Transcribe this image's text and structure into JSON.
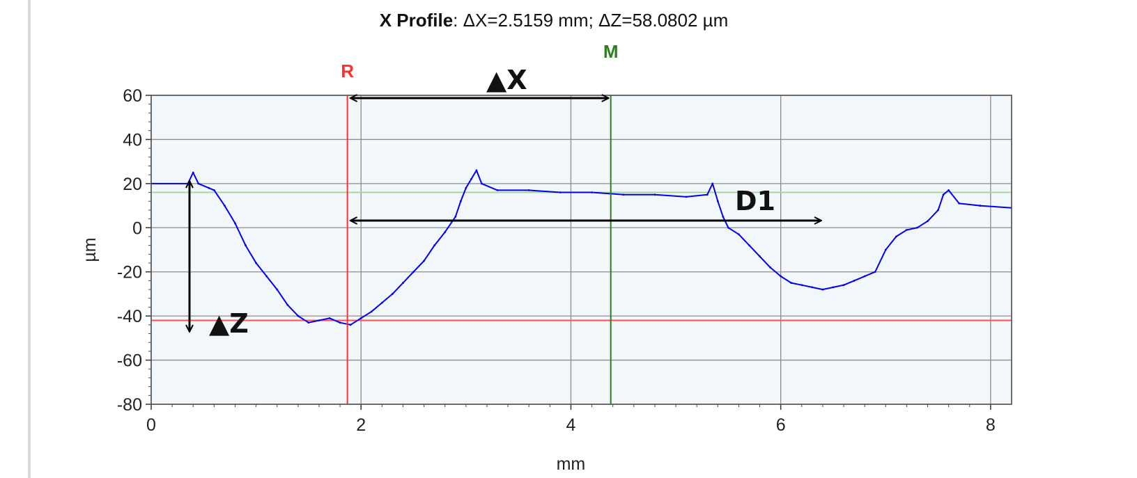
{
  "title": {
    "bold": "X Profile",
    "rest": ": ΔX=2.5159 mm; ΔZ=58.0802 µm"
  },
  "chart_data": {
    "type": "line",
    "title": "X Profile: ΔX=2.5159 mm; ΔZ=58.0802 µm",
    "xlabel": "mm",
    "ylabel": "µm",
    "xlim": [
      0,
      8.2
    ],
    "ylim": [
      -80,
      60
    ],
    "xticks": [
      0,
      2,
      4,
      6,
      8
    ],
    "yticks": [
      60,
      40,
      20,
      0,
      -20,
      -40,
      -60,
      -80
    ],
    "grid": true,
    "series": [
      {
        "color": "#0000ee",
        "x": [
          0.0,
          0.35,
          0.4,
          0.45,
          0.55,
          0.6,
          0.7,
          0.8,
          0.9,
          1.0,
          1.1,
          1.2,
          1.3,
          1.4,
          1.5,
          1.6,
          1.7,
          1.8,
          1.9,
          2.0,
          2.1,
          2.2,
          2.3,
          2.4,
          2.5,
          2.6,
          2.7,
          2.8,
          2.9,
          2.95,
          3.0,
          3.05,
          3.1,
          3.15,
          3.3,
          3.6,
          3.9,
          4.2,
          4.5,
          4.8,
          5.1,
          5.3,
          5.35,
          5.4,
          5.45,
          5.5,
          5.6,
          5.7,
          5.8,
          5.9,
          6.0,
          6.1,
          6.2,
          6.3,
          6.4,
          6.5,
          6.6,
          6.7,
          6.8,
          6.9,
          7.0,
          7.1,
          7.2,
          7.3,
          7.4,
          7.5,
          7.55,
          7.6,
          7.7,
          7.9,
          8.2
        ],
        "y": [
          20,
          20,
          25,
          20,
          18,
          17,
          10,
          2,
          -8,
          -16,
          -22,
          -28,
          -35,
          -40,
          -43,
          -42,
          -41,
          -43,
          -44,
          -41,
          -38,
          -34,
          -30,
          -25,
          -20,
          -15,
          -8,
          -2,
          5,
          12,
          18,
          22,
          26,
          20,
          17,
          17,
          16,
          16,
          15,
          15,
          14,
          15,
          20,
          12,
          5,
          0,
          -3,
          -8,
          -13,
          -18,
          -22,
          -25,
          -26,
          -27,
          -28,
          -27,
          -26,
          -24,
          -22,
          -20,
          -10,
          -4,
          -1,
          0,
          3,
          8,
          15,
          17,
          11,
          10,
          9
        ]
      }
    ],
    "markers": [
      {
        "label": "R",
        "x": 1.87,
        "color": "#ff3030"
      },
      {
        "label": "M",
        "x": 4.38,
        "color": "#2e7d1e"
      }
    ],
    "reference_lines": [
      {
        "y": 16,
        "color": "#a8d5a0"
      },
      {
        "y": -42,
        "color": "#ff5050"
      }
    ]
  },
  "annotations": {
    "dx_label": "▲X",
    "dz_label": "▲Z",
    "d1_label": "D1"
  }
}
